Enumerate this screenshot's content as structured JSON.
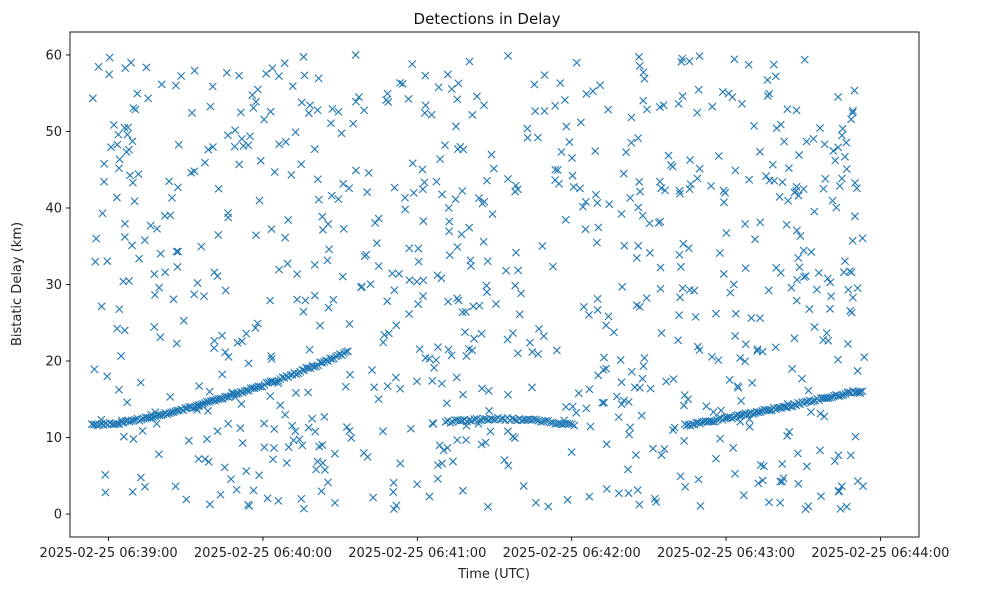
{
  "chart_data": {
    "type": "scatter",
    "title": "Detections in Delay",
    "xlabel": "Time (UTC)",
    "ylabel": "Bistatic Delay (km)",
    "marker": "x",
    "color": "#1f77b4",
    "x_unit": "seconds after 2025-02-25 06:39:00 UTC",
    "xlim": [
      -15,
      315
    ],
    "ylim": [
      -3,
      63
    ],
    "x_ticks": [
      {
        "value": 0,
        "label": "2025-02-25 06:39:00"
      },
      {
        "value": 60,
        "label": "2025-02-25 06:40:00"
      },
      {
        "value": 120,
        "label": "2025-02-25 06:41:00"
      },
      {
        "value": 180,
        "label": "2025-02-25 06:42:00"
      },
      {
        "value": 240,
        "label": "2025-02-25 06:43:00"
      },
      {
        "value": 300,
        "label": "2025-02-25 06:44:00"
      }
    ],
    "y_ticks": [
      {
        "value": 0,
        "label": "0"
      },
      {
        "value": 10,
        "label": "10"
      },
      {
        "value": 20,
        "label": "20"
      },
      {
        "value": 30,
        "label": "30"
      },
      {
        "value": 40,
        "label": "40"
      },
      {
        "value": 50,
        "label": "50"
      },
      {
        "value": 60,
        "label": "60"
      }
    ],
    "target_tracks": [
      {
        "name": "track-1",
        "x_start": -6.5,
        "x_end": 93,
        "y_start": 11.6,
        "y_end": 21.2,
        "curve": 1.5,
        "points": 130
      },
      {
        "name": "track-2",
        "x_start": 131,
        "x_end": 181,
        "y_start": 12.0,
        "y_end": 11.6,
        "bulge": 0.6,
        "points": 55
      },
      {
        "name": "track-3",
        "x_start": 224,
        "x_end": 293,
        "y_start": 11.6,
        "y_end": 16.2,
        "curve": 1.1,
        "points": 95
      }
    ],
    "clutter": {
      "count": 820,
      "x_range": [
        -6.5,
        294
      ],
      "y_range": [
        0.5,
        60
      ]
    }
  }
}
